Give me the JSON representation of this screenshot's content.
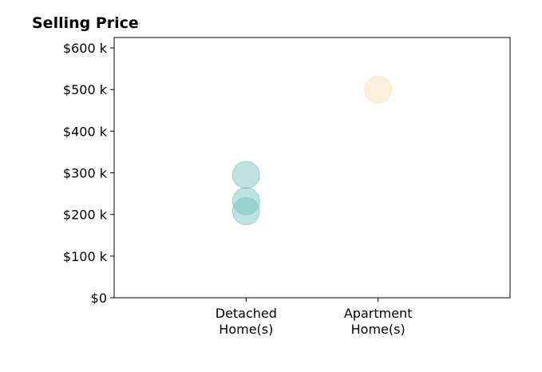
{
  "chart_data": {
    "type": "scatter",
    "title": "Selling Price",
    "xlabel": "",
    "ylabel": "",
    "categories": [
      "Detached\nHome(s)",
      "Apartment\nHome(s)"
    ],
    "x_positions": [
      0,
      1
    ],
    "xlim": [
      -1,
      2
    ],
    "ylim": [
      0,
      625000
    ],
    "yticks": [
      0,
      100000,
      200000,
      300000,
      400000,
      500000,
      600000
    ],
    "ytick_labels": [
      "$0",
      "$100 k",
      "$200 k",
      "$300 k",
      "$400 k",
      "$500 k",
      "$600 k"
    ],
    "grid": false,
    "legend": "none",
    "points": [
      {
        "category": "Detached\nHome(s)",
        "y": 295000,
        "color": "#6fbfba"
      },
      {
        "category": "Detached\nHome(s)",
        "y": 232000,
        "color": "#6fbfba"
      },
      {
        "category": "Detached\nHome(s)",
        "y": 208000,
        "color": "#6fbfba"
      },
      {
        "category": "Apartment\nHome(s)",
        "y": 500000,
        "color": "#f4ddb0"
      }
    ],
    "point_opacity": 0.45
  }
}
